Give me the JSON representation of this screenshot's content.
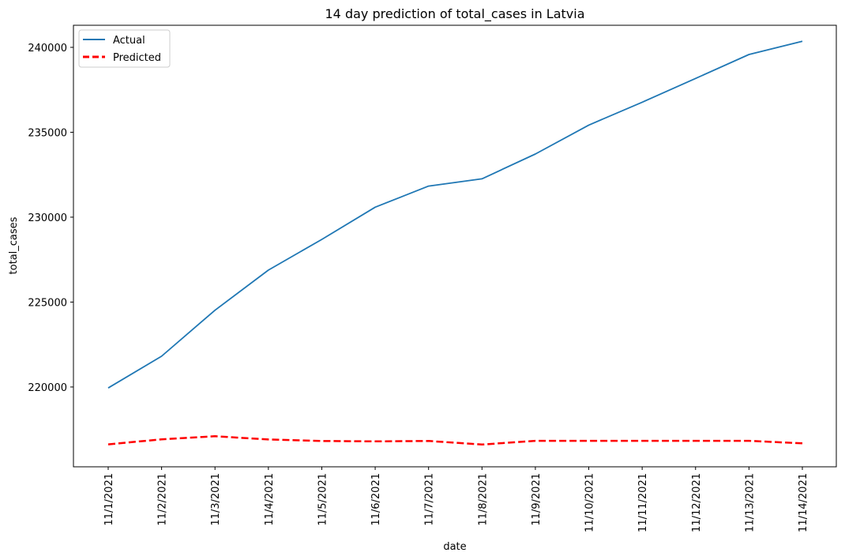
{
  "chart_data": {
    "type": "line",
    "title": "14 day prediction of total_cases in Latvia",
    "xlabel": "date",
    "ylabel": "total_cases",
    "x": [
      "11/1/2021",
      "11/2/2021",
      "11/3/2021",
      "11/4/2021",
      "11/5/2021",
      "11/6/2021",
      "11/7/2021",
      "11/8/2021",
      "11/9/2021",
      "11/10/2021",
      "11/11/2021",
      "11/12/2021",
      "11/13/2021",
      "11/14/2021"
    ],
    "yticks": [
      220000,
      225000,
      230000,
      235000,
      240000
    ],
    "ylim": [
      215300,
      241300
    ],
    "grid": false,
    "legend_position": "top-left",
    "series": [
      {
        "name": "Actual",
        "color": "#1f77b4",
        "style": "solid",
        "values": [
          219940,
          221810,
          224520,
          226880,
          228690,
          230590,
          231830,
          232260,
          233720,
          235420,
          236770,
          238170,
          239580,
          240360
        ]
      },
      {
        "name": "Predicted",
        "color": "#ff0000",
        "style": "dashed",
        "values": [
          216620,
          216920,
          217100,
          216910,
          216820,
          216800,
          216820,
          216610,
          216830,
          216830,
          216830,
          216830,
          216830,
          216680
        ]
      }
    ]
  }
}
